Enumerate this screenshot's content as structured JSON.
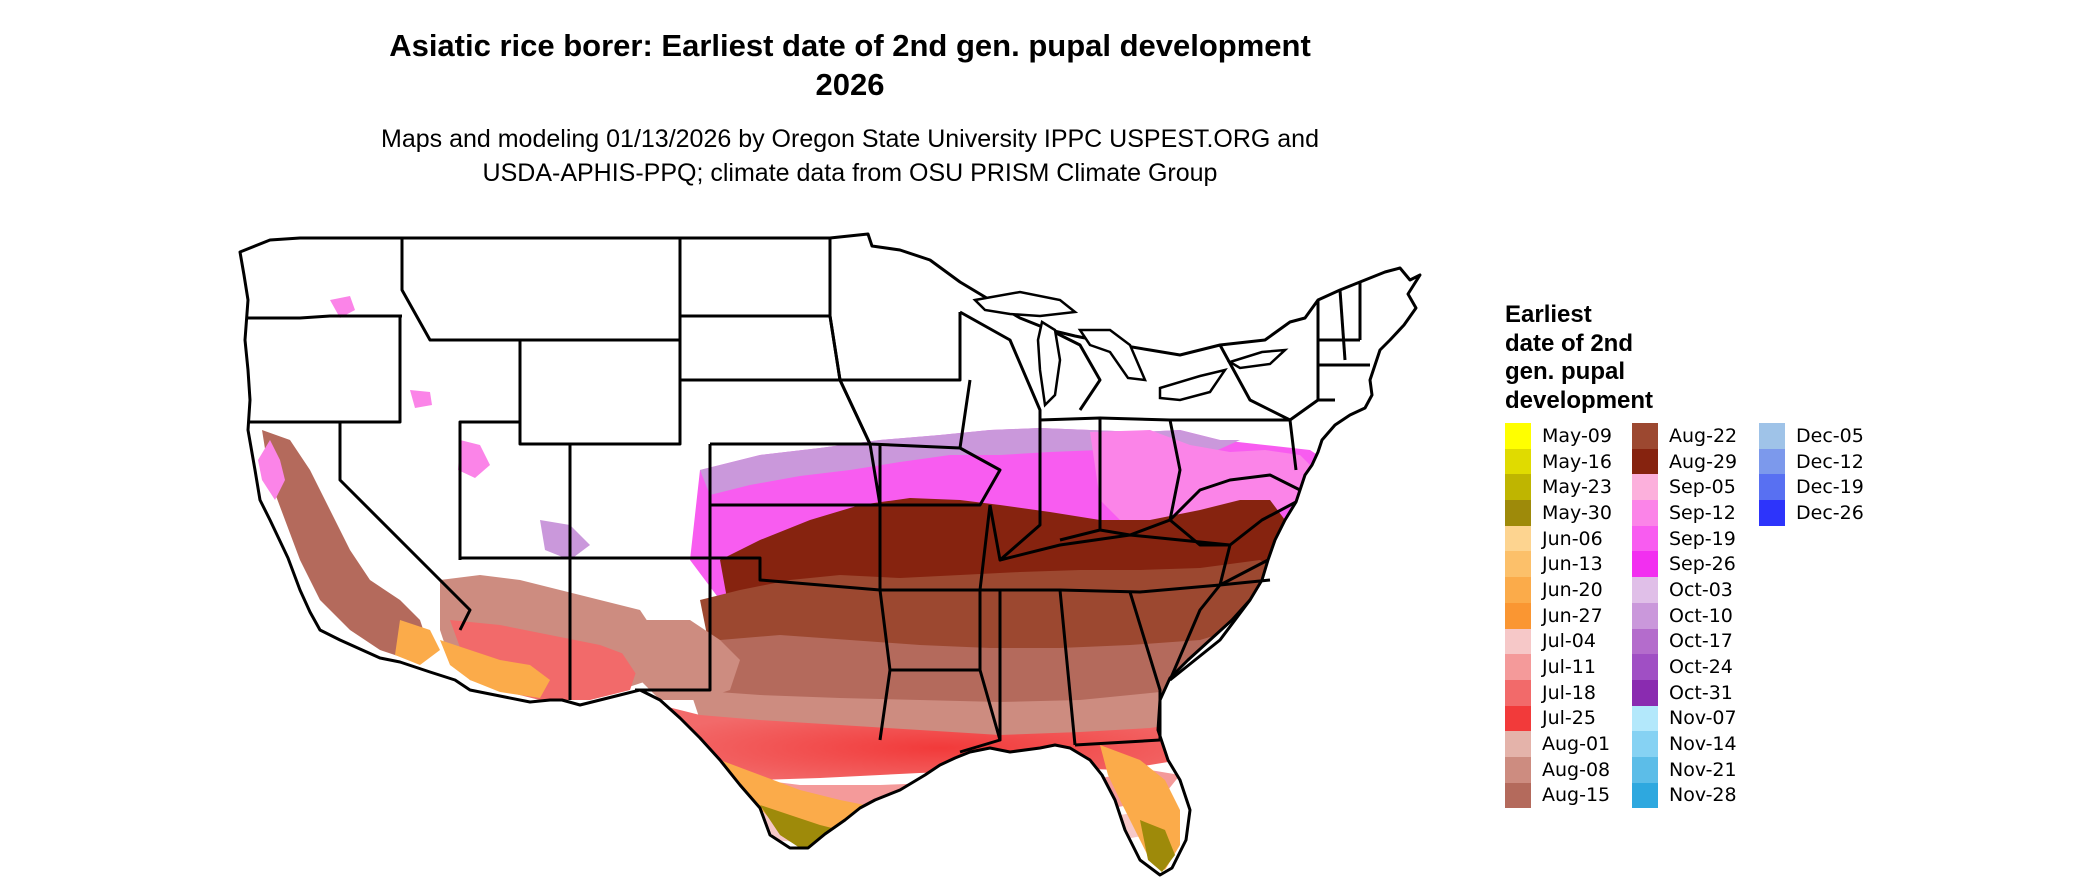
{
  "title": {
    "line1": "Asiatic rice borer: Earliest date of 2nd gen. pupal development",
    "line2": "2026"
  },
  "subtitle": {
    "line1": "Maps and modeling 01/13/2026 by Oregon State University IPPC USPEST.ORG and",
    "line2": "USDA-APHIS-PPQ; climate data from OSU PRISM Climate Group"
  },
  "legend": {
    "title_lines": [
      "Earliest",
      "date of 2nd",
      "gen. pupal",
      "development"
    ],
    "columns": [
      [
        {
          "label": "May-09",
          "color": "#ffff00"
        },
        {
          "label": "May-16",
          "color": "#e0db00"
        },
        {
          "label": "May-23",
          "color": "#bfb500"
        },
        {
          "label": "May-30",
          "color": "#9e8a0a"
        },
        {
          "label": "Jun-06",
          "color": "#fdd490"
        },
        {
          "label": "Jun-13",
          "color": "#fcc06a"
        },
        {
          "label": "Jun-20",
          "color": "#fbab4a"
        },
        {
          "label": "Jun-27",
          "color": "#fa9632"
        },
        {
          "label": "Jul-04",
          "color": "#f6c8c8"
        },
        {
          "label": "Jul-11",
          "color": "#f49a9a"
        },
        {
          "label": "Jul-18",
          "color": "#f26a6a"
        },
        {
          "label": "Jul-25",
          "color": "#f23a3a"
        },
        {
          "label": "Aug-01",
          "color": "#e4b3aa"
        },
        {
          "label": "Aug-08",
          "color": "#cd8c80"
        },
        {
          "label": "Aug-15",
          "color": "#b46a5c"
        }
      ],
      [
        {
          "label": "Aug-22",
          "color": "#9c4830"
        },
        {
          "label": "Aug-29",
          "color": "#86230f"
        },
        {
          "label": "Sep-05",
          "color": "#fcb0dc"
        },
        {
          "label": "Sep-12",
          "color": "#fb84e8"
        },
        {
          "label": "Sep-19",
          "color": "#f85cf0"
        },
        {
          "label": "Sep-26",
          "color": "#f22ff0"
        },
        {
          "label": "Oct-03",
          "color": "#e0bfe8"
        },
        {
          "label": "Oct-10",
          "color": "#ca98db"
        },
        {
          "label": "Oct-17",
          "color": "#b46ccc"
        },
        {
          "label": "Oct-24",
          "color": "#a04fc4"
        },
        {
          "label": "Oct-31",
          "color": "#8a2bb0"
        },
        {
          "label": "Nov-07",
          "color": "#b3e8fb"
        },
        {
          "label": "Nov-14",
          "color": "#86d2f3"
        },
        {
          "label": "Nov-21",
          "color": "#5cbde8"
        },
        {
          "label": "Nov-28",
          "color": "#2ea8df"
        }
      ],
      [
        {
          "label": "Dec-05",
          "color": "#9fc3e8"
        },
        {
          "label": "Dec-12",
          "color": "#7c99ec"
        },
        {
          "label": "Dec-19",
          "color": "#5870f2"
        },
        {
          "label": "Dec-26",
          "color": "#2d34fb"
        }
      ]
    ]
  }
}
